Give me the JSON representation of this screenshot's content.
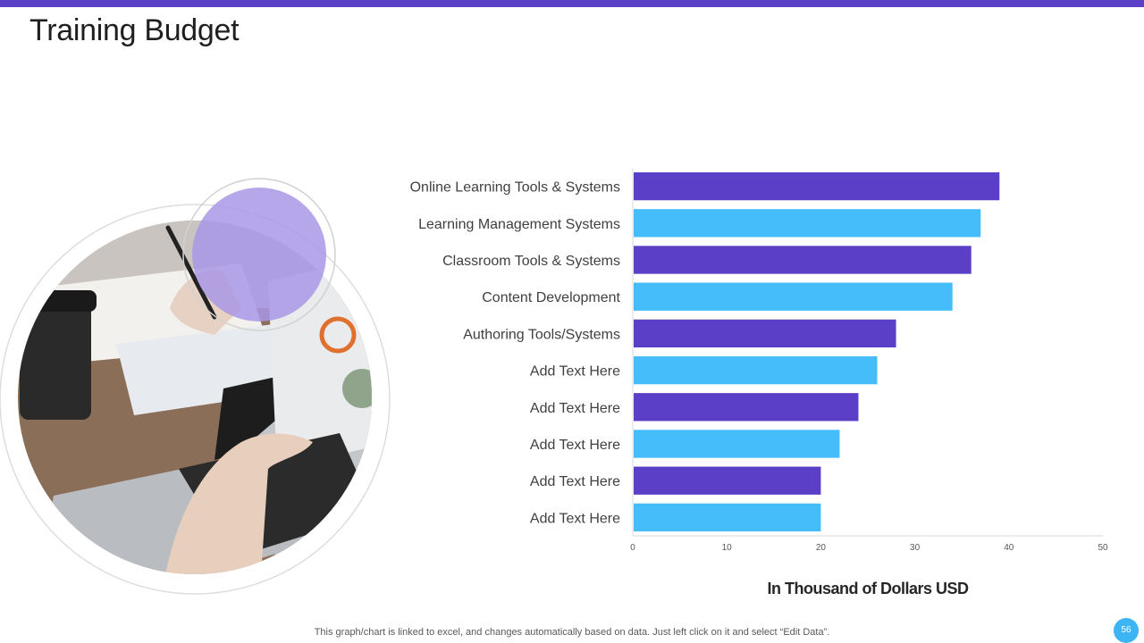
{
  "slide": {
    "title": "Training Budget",
    "footnote": "This graph/chart is linked to excel,  and changes automatically based on data. Just left click on it and select “Edit Data”.",
    "page_number": "56",
    "colors": {
      "accent_bar": "#5b3fc6",
      "purple_circle": "#a898e6",
      "badge": "#3db5f5"
    }
  },
  "chart_data": {
    "type": "bar",
    "orientation": "horizontal",
    "categories": [
      "Online Learning Tools & Systems",
      "Learning Management Systems",
      "Classroom Tools & Systems",
      "Content Development",
      "Authoring Tools/Systems",
      "Add Text Here",
      "Add Text Here",
      "Add Text Here",
      "Add Text Here",
      "Add Text Here"
    ],
    "values": [
      39,
      37,
      36,
      34,
      28,
      26,
      24,
      22,
      20,
      20
    ],
    "bar_colors": [
      "#5b3fc6",
      "#45bdfb"
    ],
    "xlabel": "In Thousand of Dollars USD",
    "xlim": [
      0,
      50
    ],
    "xticks": [
      0,
      10,
      20,
      30,
      40,
      50
    ],
    "grid": false,
    "legend": "none"
  }
}
